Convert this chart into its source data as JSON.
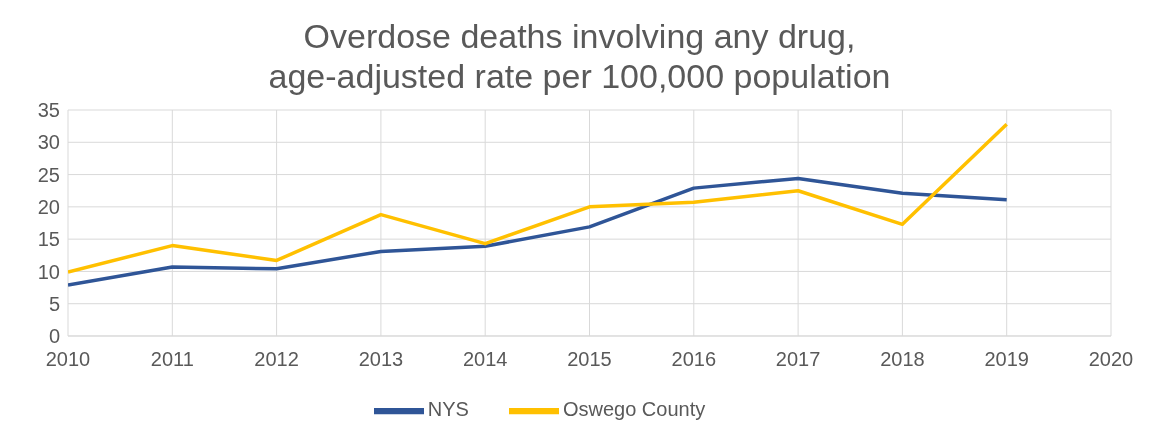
{
  "chart_data": {
    "type": "line",
    "title": "Overdose deaths involving any drug, age-adjusted rate per 100,000 population",
    "x": [
      2010,
      2011,
      2012,
      2013,
      2014,
      2015,
      2016,
      2017,
      2018,
      2019
    ],
    "series": [
      {
        "name": "NYS",
        "color": "#2f5597",
        "values": [
          7.9,
          10.7,
          10.4,
          13.1,
          13.9,
          16.9,
          22.9,
          24.4,
          22.1,
          21.1
        ]
      },
      {
        "name": "Oswego County",
        "color": "#ffc000",
        "values": [
          9.9,
          14.0,
          11.7,
          18.8,
          14.3,
          20.0,
          20.7,
          22.5,
          17.3,
          32.8
        ]
      }
    ],
    "xlim": [
      2010,
      2020
    ],
    "xticks": [
      2010,
      2011,
      2012,
      2013,
      2014,
      2015,
      2016,
      2017,
      2018,
      2019,
      2020
    ],
    "ylim": [
      0,
      35
    ],
    "yticks": [
      0,
      5,
      10,
      15,
      20,
      25,
      30,
      35
    ],
    "grid": true,
    "legend": "bottom",
    "marker": "none",
    "line_style": "solid"
  }
}
